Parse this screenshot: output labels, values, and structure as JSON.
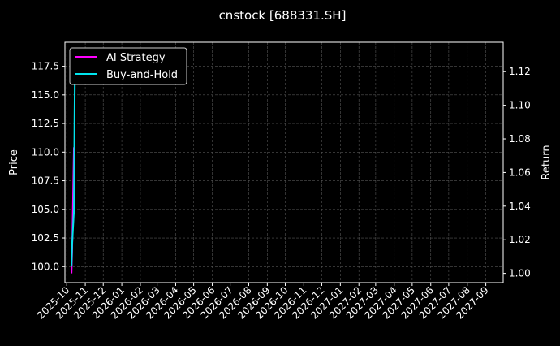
{
  "chart_data": {
    "type": "line",
    "title": "cnstock [688331.SH]",
    "ylabel": "Price",
    "y2label": "Return",
    "ylim": [
      98.6,
      119.6
    ],
    "y2lim": [
      0.9945,
      1.1375
    ],
    "xlim": [
      "2025-09-28",
      "2027-09-30"
    ],
    "yticks": [
      "100.0",
      "102.5",
      "105.0",
      "107.5",
      "110.0",
      "112.5",
      "115.0",
      "117.5"
    ],
    "y2ticks": [
      "1.00",
      "1.02",
      "1.04",
      "1.06",
      "1.08",
      "1.10",
      "1.12"
    ],
    "xticks": [
      "2025-10",
      "2025-11",
      "2025-12",
      "2026-01",
      "2026-02",
      "2026-03",
      "2026-04",
      "2026-05",
      "2026-06",
      "2026-07",
      "2026-08",
      "2026-09",
      "2026-10",
      "2026-11",
      "2026-12",
      "2027-01",
      "2027-02",
      "2027-03",
      "2027-04",
      "2027-05",
      "2027-06",
      "2027-07",
      "2027-08",
      "2027-09"
    ],
    "grid": true,
    "legend": "top-left",
    "series": [
      {
        "name": "AI Strategy",
        "color": "#ff00ff",
        "axis": "right",
        "x": [
          "2025-10-09",
          "2025-10-10",
          "2025-10-13",
          "2025-10-14"
        ],
        "values": [
          1.0,
          1.012,
          1.075,
          1.035
        ]
      },
      {
        "name": "Buy-and-Hold",
        "color": "#00e5ee",
        "axis": "left",
        "x": [
          "2025-10-09",
          "2025-10-10",
          "2025-10-13",
          "2025-10-14",
          "2025-10-15"
        ],
        "values": [
          100.0,
          101.9,
          104.8,
          112.9,
          118.9
        ]
      }
    ]
  }
}
